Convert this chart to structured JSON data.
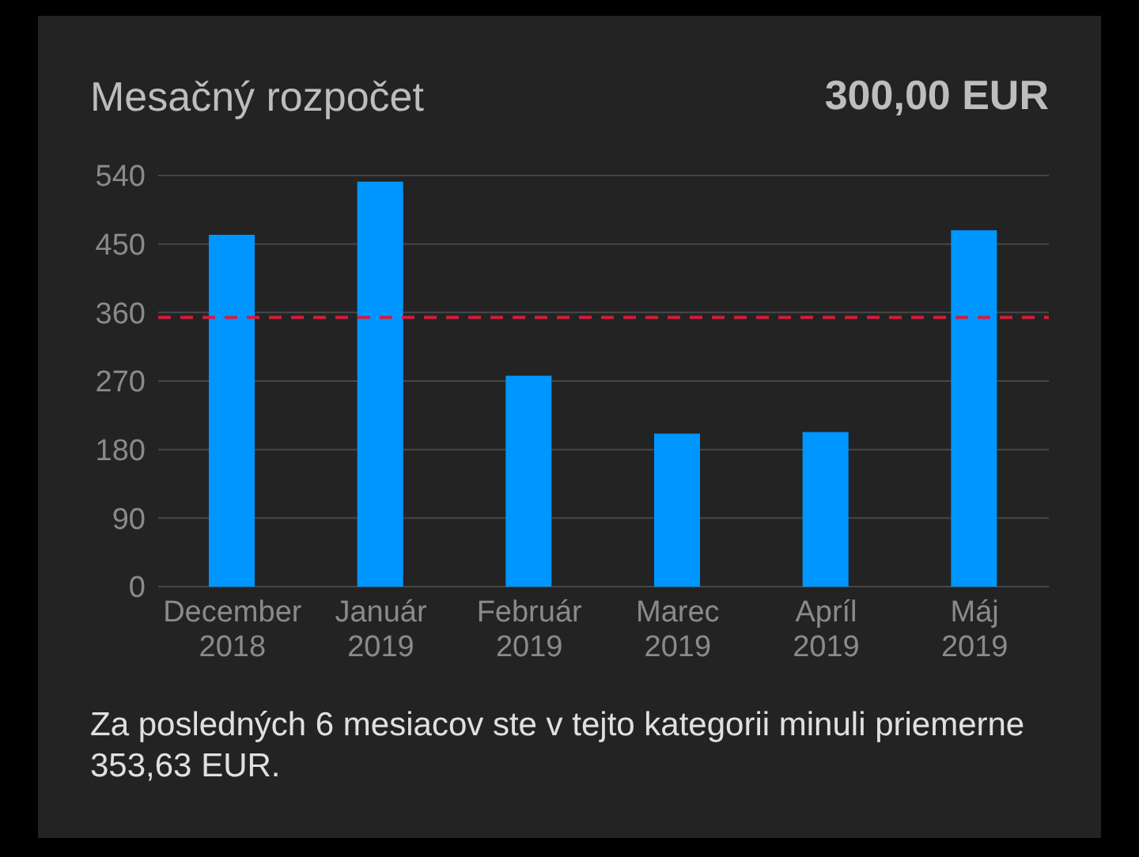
{
  "chart_data": {
    "type": "bar",
    "title": "Mesačný rozpočet",
    "subtitle": "300,00 EUR",
    "categories": [
      "December\n2018",
      "Január\n2019",
      "Február\n2019",
      "Marec\n2019",
      "Apríl\n2019",
      "Máj\n2019"
    ],
    "values": [
      462,
      532,
      277,
      201,
      203,
      468
    ],
    "color": "#0096ff",
    "ylim": [
      0,
      540
    ],
    "yticks": [
      0,
      90,
      180,
      270,
      360,
      450,
      540
    ],
    "grid": "y",
    "ref_lines": [
      {
        "axis": "y",
        "value": 353.63,
        "color": "#d81b3c",
        "line_style": "dashed"
      }
    ],
    "annotations": [
      "Za posledných 6 mesiacov ste v tejto kategorii minuli priemerne 353,63 EUR."
    ]
  }
}
